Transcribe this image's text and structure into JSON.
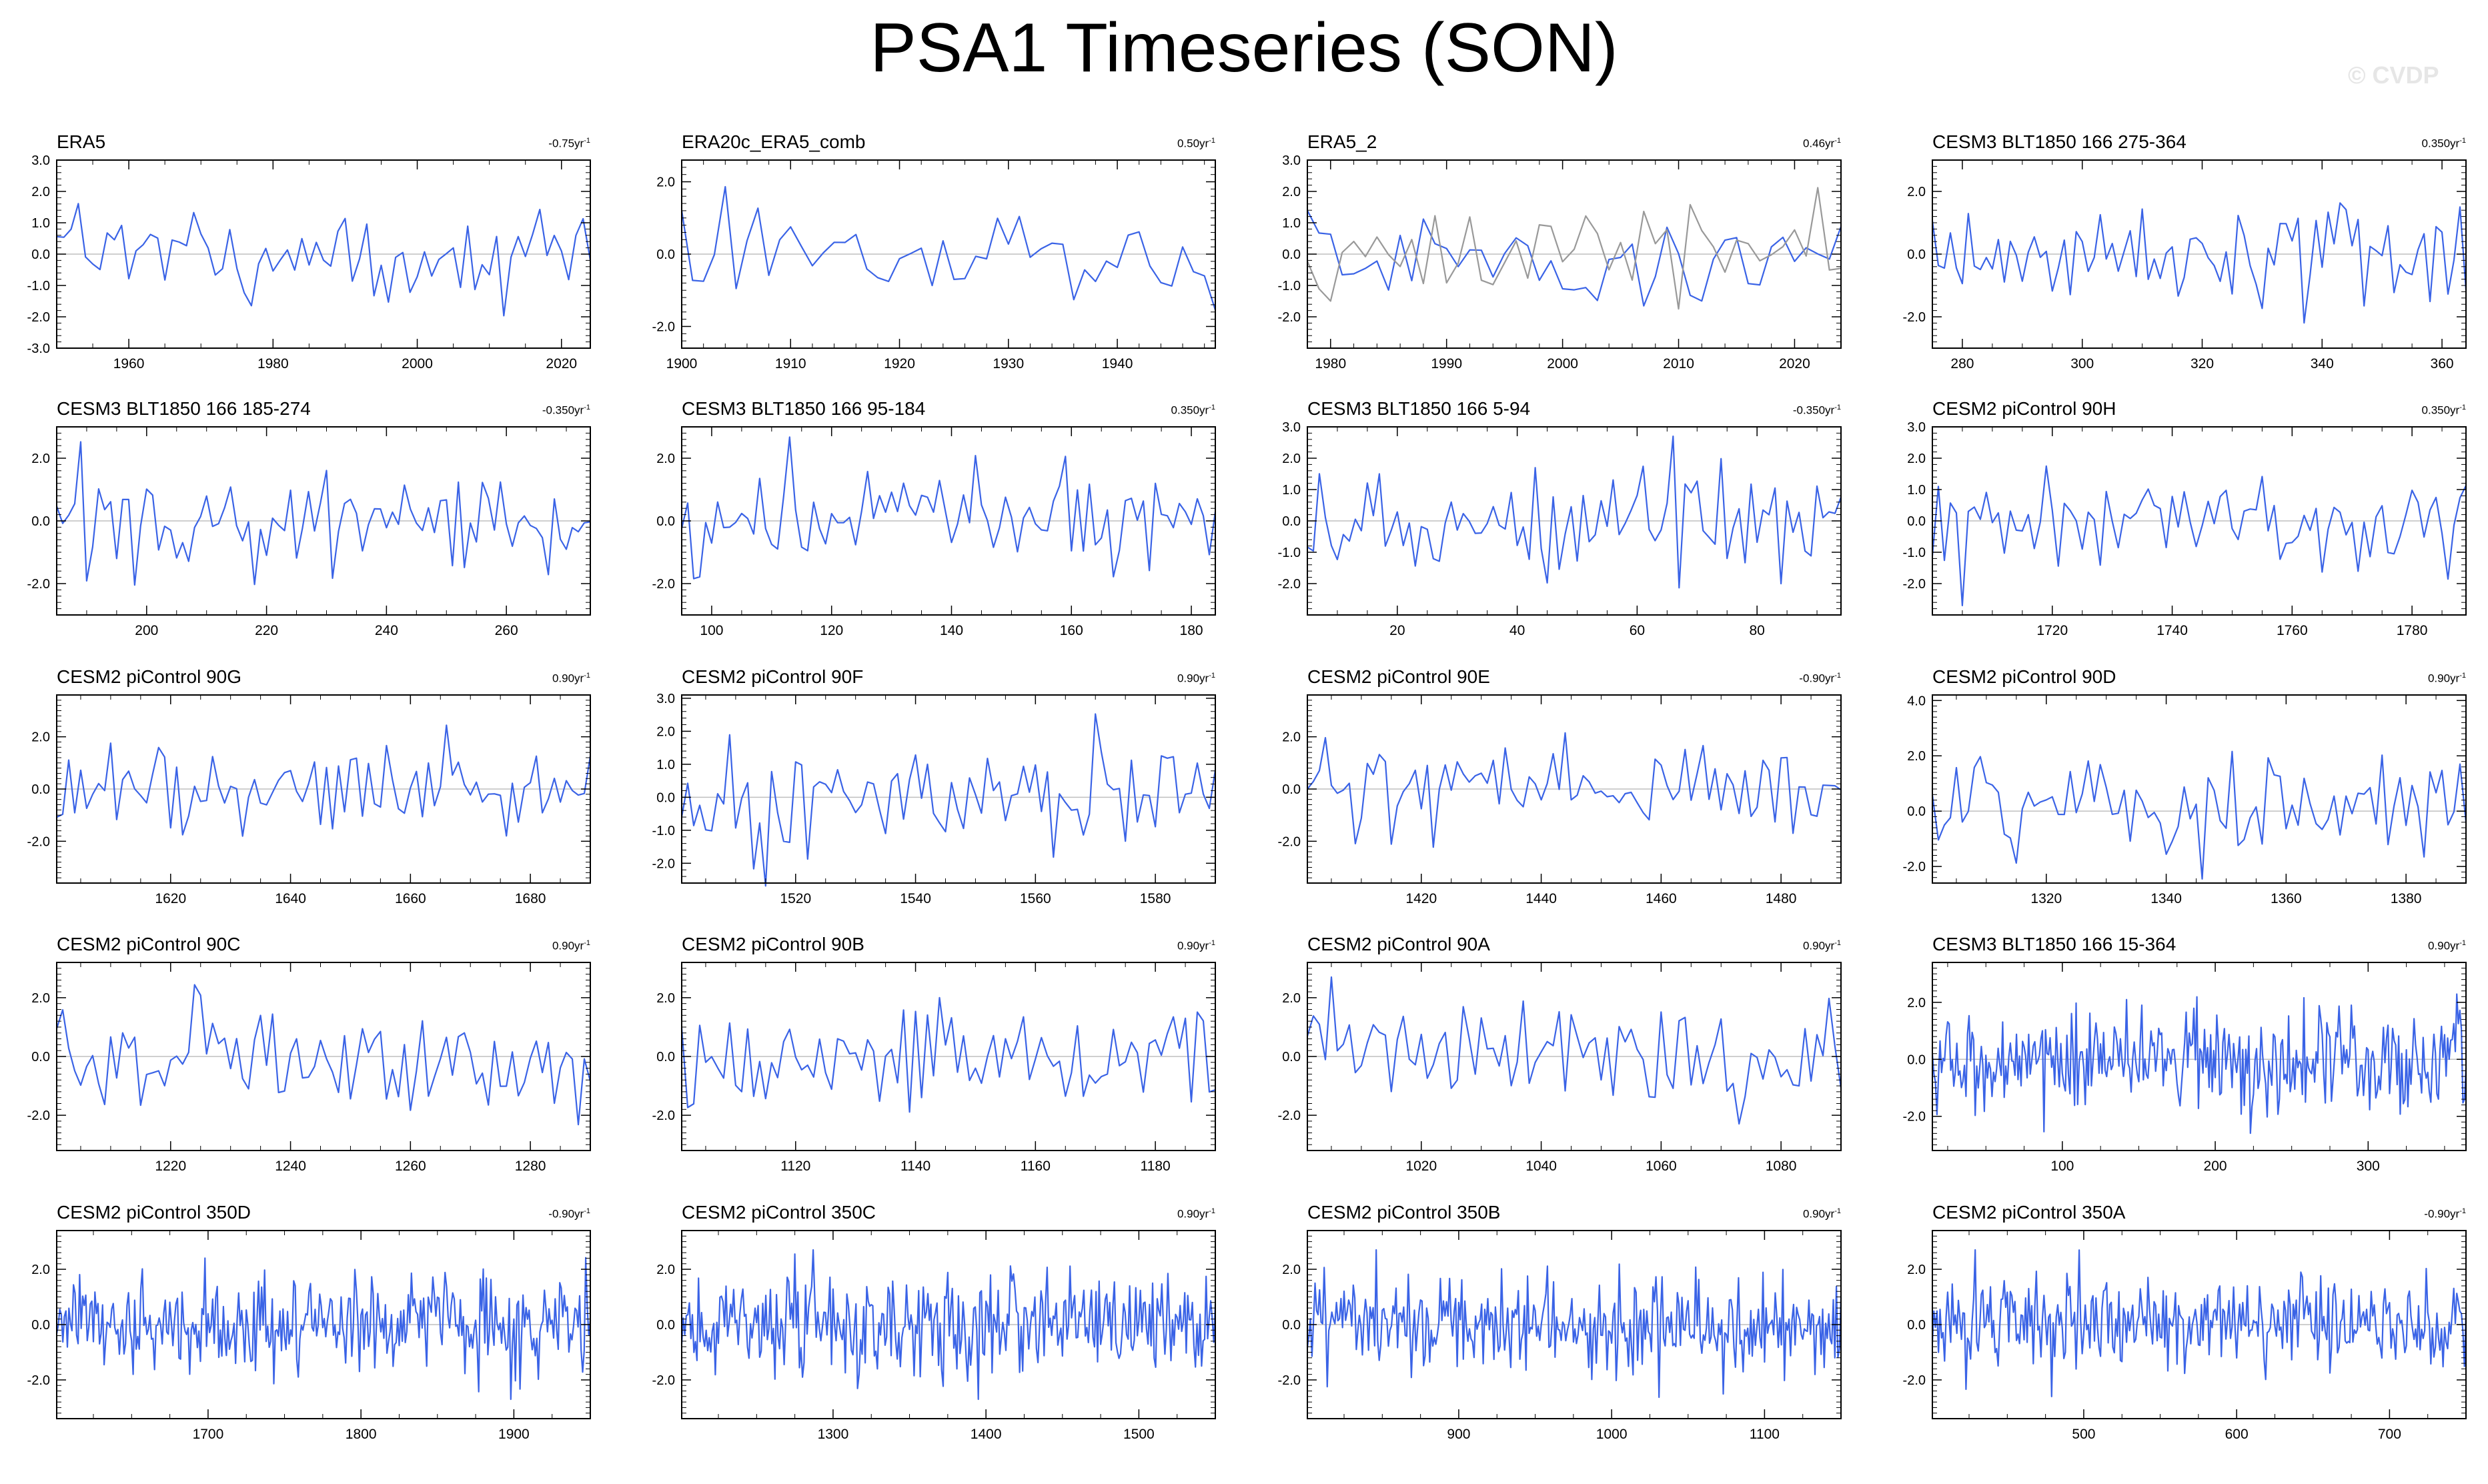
{
  "title": "PSA1 Timeseries (SON)",
  "watermark": "© CVDP",
  "colors": {
    "series": "#3a63e6",
    "comparison": "#999999",
    "axis": "#000000",
    "zero": "#bfbfbf"
  },
  "chart_data": [
    {
      "type": "line",
      "title": "ERA5",
      "trend": "-0.75yr",
      "ylim": [
        -3,
        3
      ],
      "yticks": [
        -3,
        -2,
        -1,
        0,
        1,
        2,
        3
      ],
      "xlim": [
        1950,
        2024
      ],
      "xticks": [
        1960,
        1980,
        2000,
        2020
      ],
      "series": [
        {
          "name": "ERA5",
          "seed": 1,
          "amp": 0.95
        }
      ]
    },
    {
      "type": "line",
      "title": "ERA20c_ERA5_comb",
      "trend": "0.50yr",
      "ylim": [
        -2.6,
        2.6
      ],
      "yticks": [
        -2,
        0,
        2
      ],
      "xlim": [
        1900,
        1949
      ],
      "xticks": [
        1900,
        1910,
        1920,
        1930,
        1940
      ],
      "series": [
        {
          "name": "ERA20c_ERA5_comb",
          "seed": 2,
          "amp": 1.0
        }
      ]
    },
    {
      "type": "line",
      "title": "ERA5_2",
      "trend": "0.46yr",
      "ylim": [
        -3,
        3
      ],
      "yticks": [
        -2,
        -1,
        0,
        1,
        2,
        3
      ],
      "xlim": [
        1978,
        2024
      ],
      "xticks": [
        1980,
        1990,
        2000,
        2010,
        2020
      ],
      "series": [
        {
          "name": "ERA5_2",
          "seed": 3,
          "amp": 1.0
        },
        {
          "name": "comparison",
          "seed": 31,
          "amp": 0.8,
          "gray": true
        }
      ]
    },
    {
      "type": "line",
      "title": "CESM3 BLT1850 166 275-364",
      "trend": "0.350yr",
      "ylim": [
        -3,
        3
      ],
      "yticks": [
        -2,
        0,
        2
      ],
      "xlim": [
        275,
        364
      ],
      "xticks": [
        280,
        300,
        320,
        340,
        360
      ],
      "series": [
        {
          "name": "CESM3 BLT1850 166 275-364",
          "seed": 4,
          "amp": 0.95
        }
      ]
    },
    {
      "type": "line",
      "title": "CESM3 BLT1850 166 185-274",
      "trend": "-0.350yr",
      "ylim": [
        -3,
        3
      ],
      "yticks": [
        -2,
        0,
        2
      ],
      "xlim": [
        185,
        274
      ],
      "xticks": [
        200,
        220,
        240,
        260
      ],
      "series": [
        {
          "name": "CESM3 BLT1850 166 185-274",
          "seed": 5,
          "amp": 0.95
        }
      ]
    },
    {
      "type": "line",
      "title": "CESM3 BLT1850 166 95-184",
      "trend": "0.350yr",
      "ylim": [
        -3,
        3
      ],
      "yticks": [
        -2,
        0,
        2
      ],
      "xlim": [
        95,
        184
      ],
      "xticks": [
        100,
        120,
        140,
        160,
        180
      ],
      "series": [
        {
          "name": "CESM3 BLT1850 166 95-184",
          "seed": 6,
          "amp": 0.95
        }
      ]
    },
    {
      "type": "line",
      "title": "CESM3 BLT1850 166 5-94",
      "trend": "-0.350yr",
      "ylim": [
        -3,
        3
      ],
      "yticks": [
        -2,
        -1,
        0,
        1,
        2,
        3
      ],
      "xlim": [
        5,
        94
      ],
      "xticks": [
        20,
        40,
        60,
        80
      ],
      "series": [
        {
          "name": "CESM3 BLT1850 166 5-94",
          "seed": 7,
          "amp": 0.95
        }
      ]
    },
    {
      "type": "line",
      "title": "CESM2 piControl 90H",
      "trend": "0.350yr",
      "ylim": [
        -3,
        3
      ],
      "yticks": [
        -2,
        -1,
        0,
        1,
        2,
        3
      ],
      "xlim": [
        1700,
        1789
      ],
      "xticks": [
        1720,
        1740,
        1760,
        1780
      ],
      "series": [
        {
          "name": "CESM2 piControl 90H",
          "seed": 8,
          "amp": 0.95
        }
      ]
    },
    {
      "type": "line",
      "title": "CESM2 piControl 90G",
      "trend": "0.90yr",
      "ylim": [
        -3.6,
        3.6
      ],
      "yticks": [
        -2,
        0,
        2
      ],
      "xlim": [
        1601,
        1690
      ],
      "xticks": [
        1620,
        1640,
        1660,
        1680
      ],
      "series": [
        {
          "name": "CESM2 piControl 90G",
          "seed": 9,
          "amp": 1.0
        }
      ]
    },
    {
      "type": "line",
      "title": "CESM2 piControl 90F",
      "trend": "0.90yr",
      "ylim": [
        -2.6,
        3.1
      ],
      "yticks": [
        -2,
        -1,
        0,
        1,
        2,
        3
      ],
      "xlim": [
        1501,
        1590
      ],
      "xticks": [
        1520,
        1540,
        1560,
        1580
      ],
      "series": [
        {
          "name": "CESM2 piControl 90F",
          "seed": 10,
          "amp": 0.95
        }
      ]
    },
    {
      "type": "line",
      "title": "CESM2 piControl 90E",
      "trend": "-0.90yr",
      "ylim": [
        -3.6,
        3.6
      ],
      "yticks": [
        -2,
        0,
        2
      ],
      "xlim": [
        1401,
        1490
      ],
      "xticks": [
        1420,
        1440,
        1460,
        1480
      ],
      "series": [
        {
          "name": "CESM2 piControl 90E",
          "seed": 11,
          "amp": 1.0
        }
      ]
    },
    {
      "type": "line",
      "title": "CESM2 piControl 90D",
      "trend": "0.90yr",
      "ylim": [
        -2.6,
        4.2
      ],
      "yticks": [
        -2,
        0,
        2,
        4
      ],
      "xlim": [
        1301,
        1390
      ],
      "xticks": [
        1320,
        1340,
        1360,
        1380
      ],
      "series": [
        {
          "name": "CESM2 piControl 90D",
          "seed": 12,
          "amp": 1.0
        }
      ]
    },
    {
      "type": "line",
      "title": "CESM2 piControl 90C",
      "trend": "0.90yr",
      "ylim": [
        -3.2,
        3.2
      ],
      "yticks": [
        -2,
        0,
        2
      ],
      "xlim": [
        1201,
        1290
      ],
      "xticks": [
        1220,
        1240,
        1260,
        1280
      ],
      "series": [
        {
          "name": "CESM2 piControl 90C",
          "seed": 13,
          "amp": 1.0
        }
      ]
    },
    {
      "type": "line",
      "title": "CESM2 piControl 90B",
      "trend": "0.90yr",
      "ylim": [
        -3.2,
        3.2
      ],
      "yticks": [
        -2,
        0,
        2
      ],
      "xlim": [
        1101,
        1190
      ],
      "xticks": [
        1120,
        1140,
        1160,
        1180
      ],
      "series": [
        {
          "name": "CESM2 piControl 90B",
          "seed": 14,
          "amp": 1.0
        }
      ]
    },
    {
      "type": "line",
      "title": "CESM2 piControl 90A",
      "trend": "0.90yr",
      "ylim": [
        -3.2,
        3.2
      ],
      "yticks": [
        -2,
        0,
        2
      ],
      "xlim": [
        1001,
        1090
      ],
      "xticks": [
        1020,
        1040,
        1060,
        1080
      ],
      "series": [
        {
          "name": "CESM2 piControl 90A",
          "seed": 15,
          "amp": 1.0
        }
      ]
    },
    {
      "type": "line",
      "title": "CESM3 BLT1850 166 15-364",
      "trend": "0.90yr",
      "ylim": [
        -3.2,
        3.4
      ],
      "yticks": [
        -2,
        0,
        2
      ],
      "xlim": [
        15,
        364
      ],
      "xticks": [
        100,
        200,
        300
      ],
      "series": [
        {
          "name": "CESM3 BLT1850 166 15-364",
          "seed": 16,
          "amp": 1.0
        }
      ]
    },
    {
      "type": "line",
      "title": "CESM2 piControl 350D",
      "trend": "-0.90yr",
      "ylim": [
        -3.4,
        3.4
      ],
      "yticks": [
        -2,
        0,
        2
      ],
      "xlim": [
        1601,
        1950
      ],
      "xticks": [
        1700,
        1800,
        1900
      ],
      "series": [
        {
          "name": "CESM2 piControl 350D",
          "seed": 17,
          "amp": 1.0
        }
      ]
    },
    {
      "type": "line",
      "title": "CESM2 piControl 350C",
      "trend": "0.90yr",
      "ylim": [
        -3.4,
        3.4
      ],
      "yticks": [
        -2,
        0,
        2
      ],
      "xlim": [
        1201,
        1550
      ],
      "xticks": [
        1300,
        1400,
        1500
      ],
      "series": [
        {
          "name": "CESM2 piControl 350C",
          "seed": 18,
          "amp": 1.0
        }
      ]
    },
    {
      "type": "line",
      "title": "CESM2 piControl 350B",
      "trend": "0.90yr",
      "ylim": [
        -3.4,
        3.4
      ],
      "yticks": [
        -2,
        0,
        2
      ],
      "xlim": [
        801,
        1150
      ],
      "xticks": [
        900,
        1000,
        1100
      ],
      "series": [
        {
          "name": "CESM2 piControl 350B",
          "seed": 19,
          "amp": 1.0
        }
      ]
    },
    {
      "type": "line",
      "title": "CESM2 piControl 350A",
      "trend": "-0.90yr",
      "ylim": [
        -3.4,
        3.4
      ],
      "yticks": [
        -2,
        0,
        2
      ],
      "xlim": [
        401,
        750
      ],
      "xticks": [
        500,
        600,
        700
      ],
      "series": [
        {
          "name": "CESM2 piControl 350A",
          "seed": 20,
          "amp": 1.0
        }
      ]
    }
  ]
}
